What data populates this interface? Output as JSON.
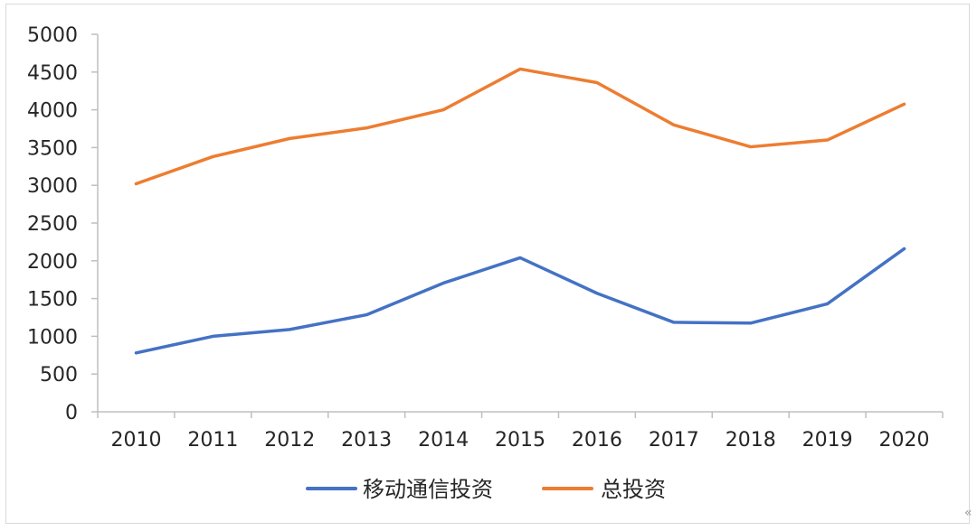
{
  "chart_data": {
    "type": "line",
    "title": "",
    "xlabel": "",
    "ylabel": "",
    "categories": [
      "2010",
      "2011",
      "2012",
      "2013",
      "2014",
      "2015",
      "2016",
      "2017",
      "2018",
      "2019",
      "2020"
    ],
    "ylim": [
      0,
      5000
    ],
    "yticks": [
      0,
      500,
      1000,
      1500,
      2000,
      2500,
      3000,
      3500,
      4000,
      4500,
      5000
    ],
    "grid": false,
    "legend_position": "bottom",
    "series": [
      {
        "name": "移动通信投资",
        "color": "#4472c4",
        "values": [
          780,
          1000,
          1090,
          1285,
          1705,
          2040,
          1570,
          1185,
          1175,
          1430,
          2160
        ]
      },
      {
        "name": "总投资",
        "color": "#ed7d31",
        "values": [
          3020,
          3380,
          3620,
          3760,
          4000,
          4540,
          4360,
          3800,
          3510,
          3600,
          4075
        ]
      }
    ]
  },
  "corner_glyph": "«"
}
